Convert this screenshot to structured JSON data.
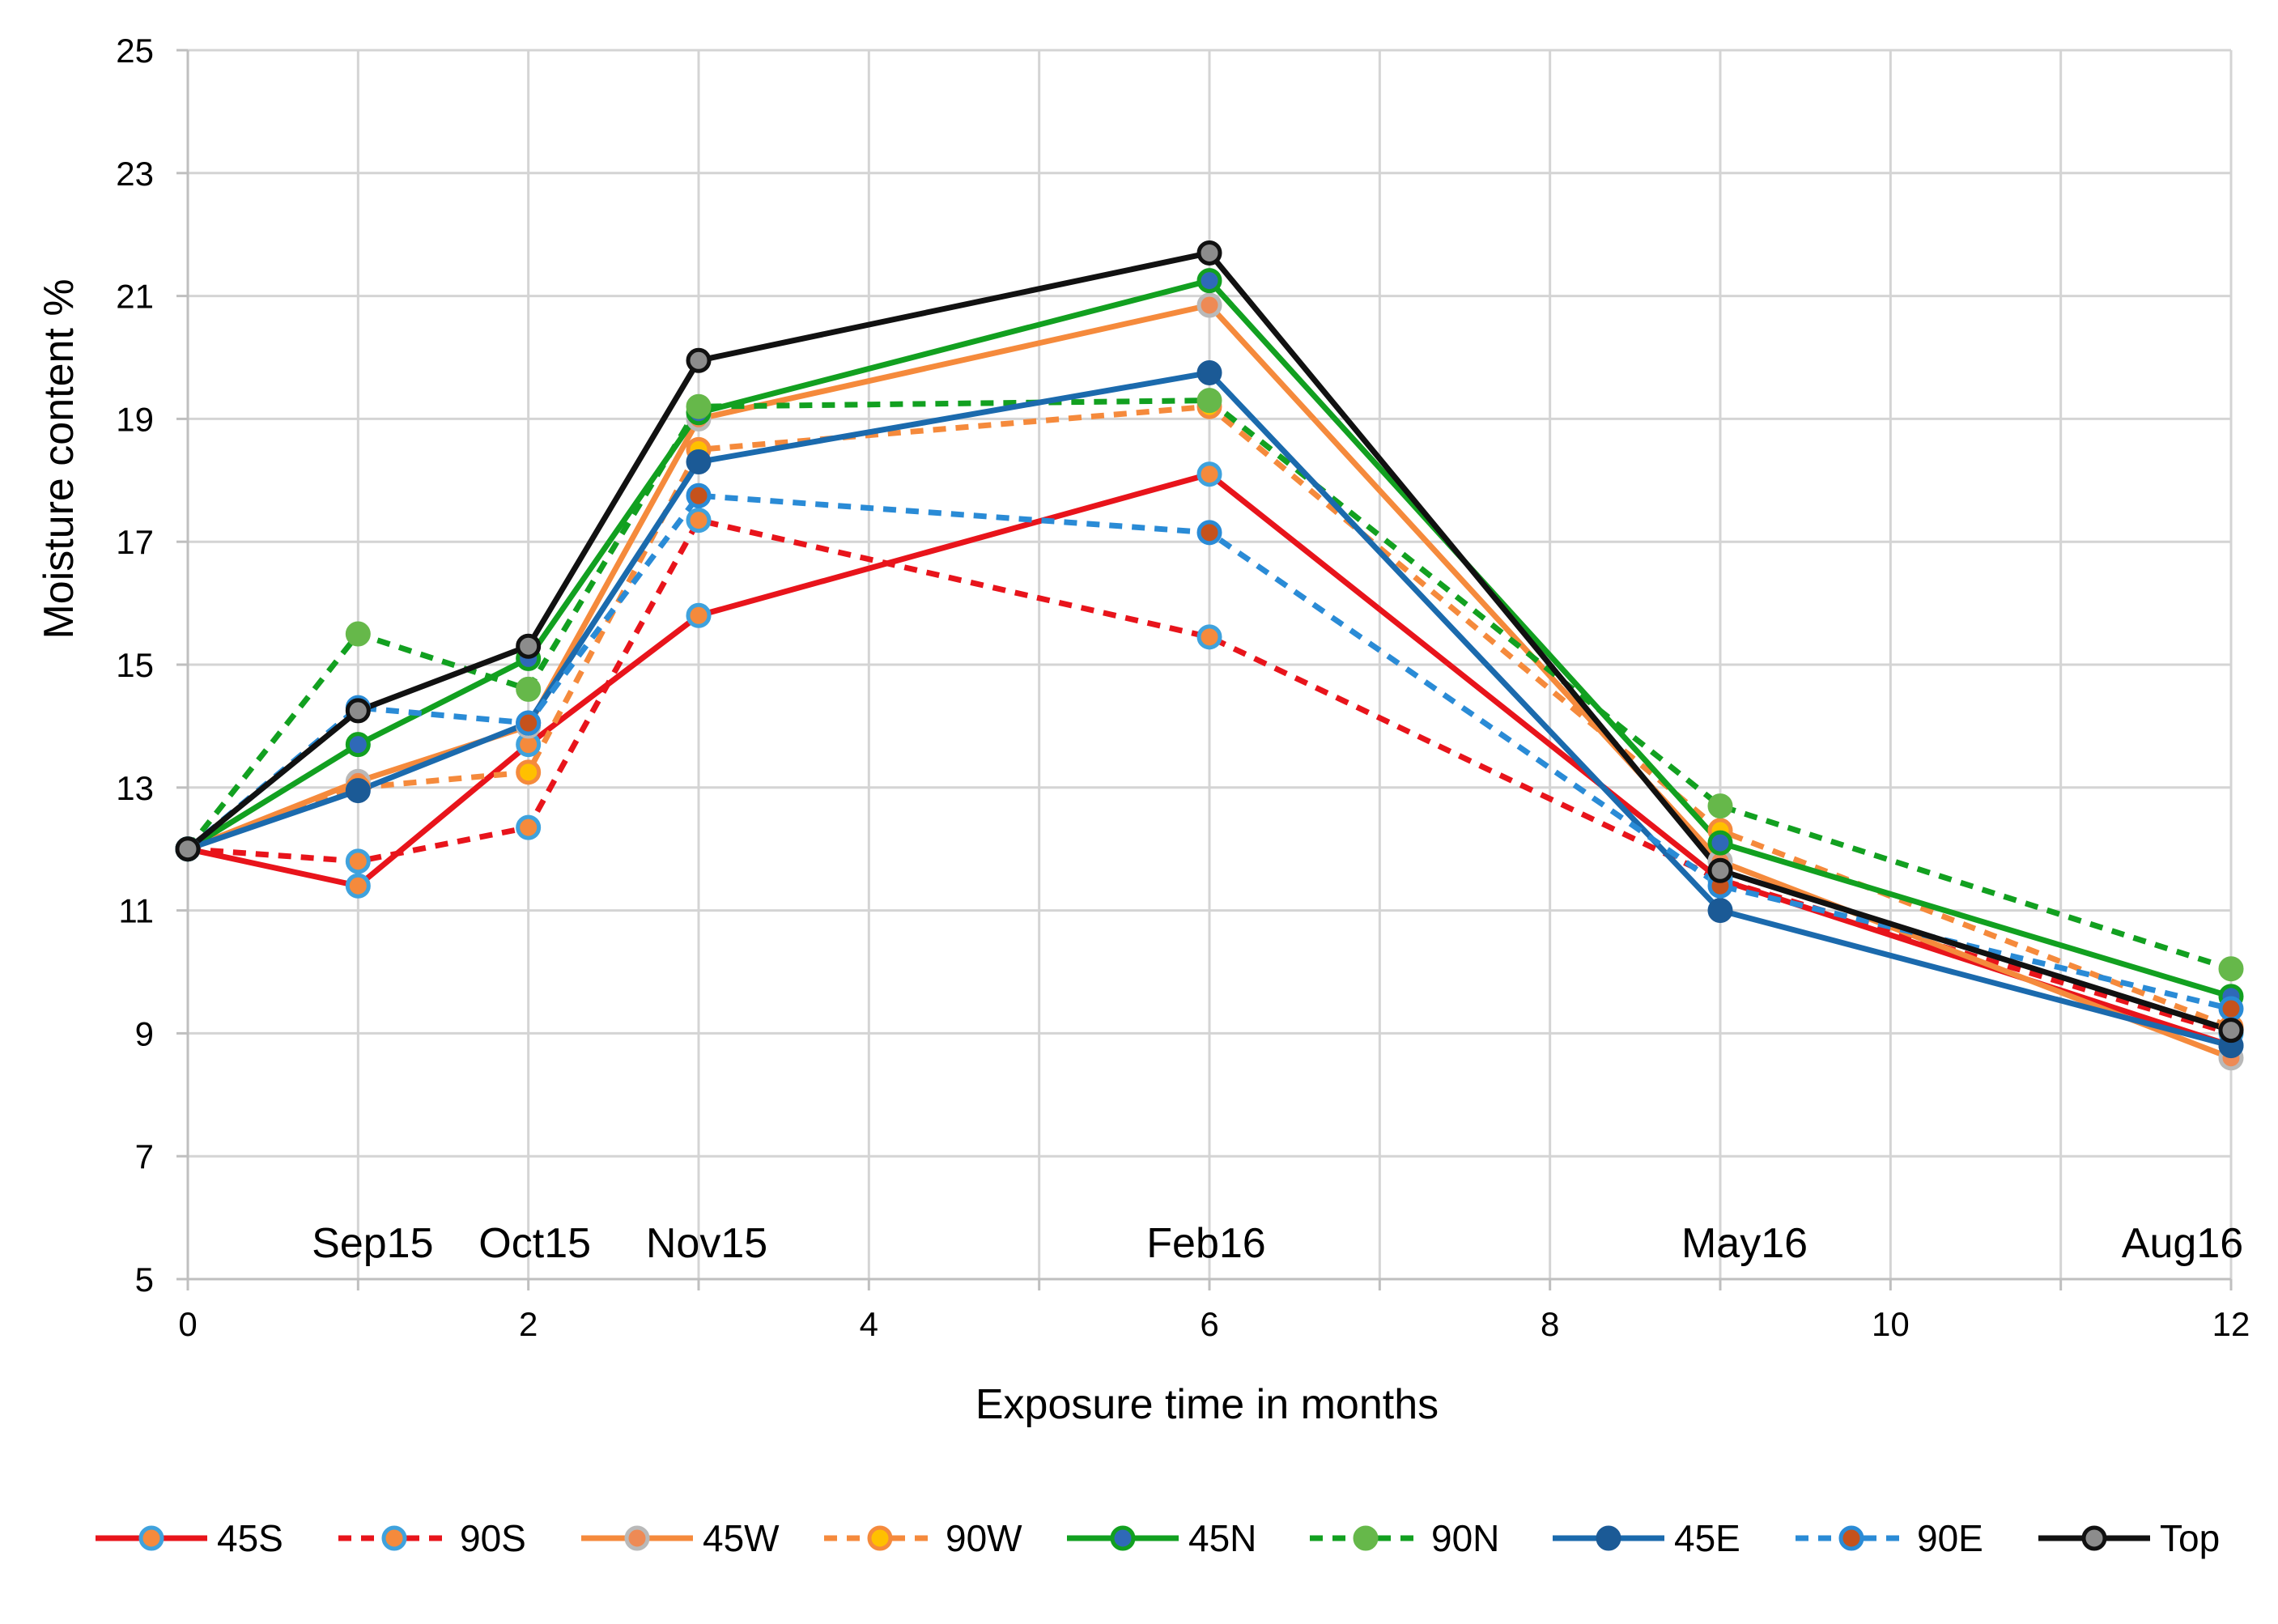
{
  "chart_data": {
    "type": "line",
    "title": "",
    "xlabel": "Exposure time in months",
    "ylabel": "Moisture content %",
    "xlim": [
      0,
      12
    ],
    "ylim": [
      5,
      25
    ],
    "x_ticks": [
      0,
      2,
      4,
      6,
      8,
      10,
      12
    ],
    "y_ticks": [
      5,
      7,
      9,
      11,
      13,
      15,
      17,
      19,
      21,
      23,
      25
    ],
    "grid": true,
    "legend_position": "bottom",
    "x": [
      0,
      1,
      2,
      3,
      6,
      9,
      12
    ],
    "annotations": [
      {
        "text": "Sep15",
        "x": 1
      },
      {
        "text": "Oct15",
        "x": 2
      },
      {
        "text": "Nov15",
        "x": 3
      },
      {
        "text": "Feb16",
        "x": 6
      },
      {
        "text": "May16",
        "x": 9
      },
      {
        "text": "Aug16",
        "x": 12
      }
    ],
    "series": [
      {
        "name": "45S",
        "color": "#e8141b",
        "dashed": false,
        "marker_fill": "#f58a3c",
        "marker_edge": "#3fa2dd",
        "values": [
          12.0,
          11.4,
          13.7,
          15.8,
          18.1,
          11.5,
          8.8
        ]
      },
      {
        "name": "90S",
        "color": "#e8141b",
        "dashed": true,
        "marker_fill": "#f58a3c",
        "marker_edge": "#3fa2dd",
        "values": [
          12.0,
          11.8,
          12.35,
          17.35,
          15.45,
          11.5,
          9.0
        ]
      },
      {
        "name": "45W",
        "color": "#f58a3c",
        "dashed": false,
        "marker_fill": "#ee8a55",
        "marker_edge": "#b9b9b9",
        "values": [
          12.0,
          13.1,
          14.0,
          19.0,
          20.85,
          11.8,
          8.6
        ]
      },
      {
        "name": "90W",
        "color": "#f58a3c",
        "dashed": true,
        "marker_fill": "#ffc000",
        "marker_edge": "#f58a3c",
        "values": [
          12.0,
          13.0,
          13.25,
          18.5,
          19.2,
          12.3,
          9.1
        ]
      },
      {
        "name": "45N",
        "color": "#12a020",
        "dashed": false,
        "marker_fill": "#2f69b8",
        "marker_edge": "#12a020",
        "values": [
          12.0,
          13.7,
          15.1,
          19.1,
          21.25,
          12.1,
          9.6
        ]
      },
      {
        "name": "90N",
        "color": "#12a020",
        "dashed": true,
        "marker_fill": "#66b84a",
        "marker_edge": "#66b84a",
        "values": [
          12.0,
          15.5,
          14.6,
          19.2,
          19.3,
          12.7,
          10.05
        ]
      },
      {
        "name": "45E",
        "color": "#1b6aad",
        "dashed": false,
        "marker_fill": "#1b5a96",
        "marker_edge": "#1b5a96",
        "values": [
          12.0,
          12.95,
          14.05,
          18.3,
          19.75,
          11.0,
          8.8
        ]
      },
      {
        "name": "90E",
        "color": "#2a8bd6",
        "dashed": true,
        "marker_fill": "#c5521c",
        "marker_edge": "#2a8bd6",
        "values": [
          12.0,
          14.3,
          14.05,
          17.75,
          17.15,
          11.4,
          9.4
        ]
      },
      {
        "name": "Top",
        "color": "#111111",
        "dashed": false,
        "marker_fill": "#8c8c8c",
        "marker_edge": "#111111",
        "values": [
          12.0,
          14.25,
          15.3,
          19.95,
          21.7,
          11.65,
          9.05
        ]
      }
    ]
  }
}
